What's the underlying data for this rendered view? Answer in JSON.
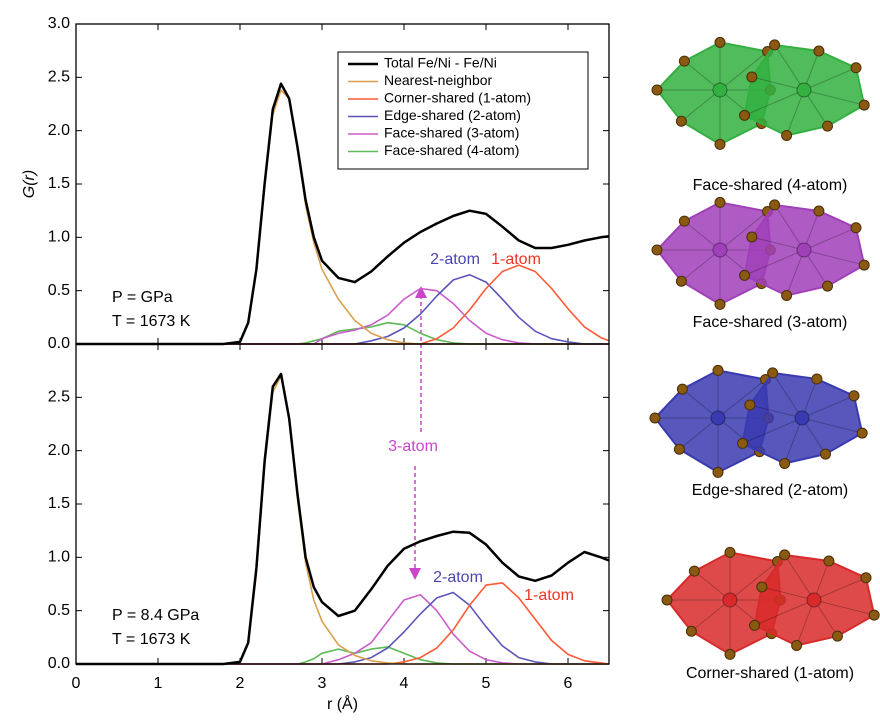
{
  "chart_data": [
    {
      "type": "line",
      "ylabel": "G(r)",
      "legend": "upper right",
      "ylim": [
        0,
        3.0
      ],
      "xlim": [
        0,
        6.5
      ],
      "yticks": [
        {
          "value": 0,
          "label": "0.0"
        },
        {
          "value": 0.5,
          "label": "0.5"
        },
        {
          "value": 1,
          "label": "1.0"
        },
        {
          "value": 1.5,
          "label": "1.5"
        },
        {
          "value": 2,
          "label": "2.0"
        },
        {
          "value": 2.5,
          "label": "2.5"
        },
        {
          "value": 3,
          "label": "3.0"
        }
      ],
      "x": [
        0,
        1,
        1.8,
        2.0,
        2.1,
        2.2,
        2.3,
        2.4,
        2.5,
        2.6,
        2.7,
        2.8,
        2.9,
        3.0,
        3.2,
        3.4,
        3.6,
        3.8,
        4.0,
        4.2,
        4.4,
        4.6,
        4.8,
        5.0,
        5.2,
        5.4,
        5.6,
        5.8,
        6.0,
        6.2,
        6.4,
        6.5
      ],
      "series": [
        {
          "name": "Total Fe/Ni - Fe/Ni",
          "color": "#000000",
          "values": [
            0,
            0,
            0,
            0.02,
            0.2,
            0.7,
            1.5,
            2.2,
            2.44,
            2.3,
            1.85,
            1.35,
            1.0,
            0.78,
            0.62,
            0.58,
            0.68,
            0.82,
            0.95,
            1.05,
            1.13,
            1.2,
            1.25,
            1.22,
            1.1,
            0.97,
            0.9,
            0.9,
            0.93,
            0.97,
            1.0,
            1.01
          ]
        },
        {
          "name": "Nearest-neighbor",
          "color": "#d9a050",
          "values": [
            0,
            0,
            0,
            0.02,
            0.2,
            0.7,
            1.5,
            2.15,
            2.38,
            2.3,
            1.85,
            1.3,
            0.95,
            0.7,
            0.42,
            0.22,
            0.1,
            0.04,
            0.01,
            0,
            0,
            0,
            0,
            0,
            0,
            0,
            0,
            0,
            0,
            0,
            0,
            0
          ]
        },
        {
          "name": "Corner-shared (1-atom)",
          "color": "#ff5a36",
          "values": [
            0,
            0,
            0,
            0,
            0,
            0,
            0,
            0,
            0,
            0,
            0,
            0,
            0,
            0,
            0,
            0,
            0,
            0,
            0,
            0,
            0.05,
            0.15,
            0.32,
            0.52,
            0.68,
            0.74,
            0.68,
            0.52,
            0.33,
            0.16,
            0.06,
            0.03
          ]
        },
        {
          "name": "Edge-shared (2-atom)",
          "color": "#5a55b8",
          "values": [
            0,
            0,
            0,
            0,
            0,
            0,
            0,
            0,
            0,
            0,
            0,
            0,
            0,
            0,
            0,
            0,
            0.03,
            0.07,
            0.15,
            0.28,
            0.45,
            0.6,
            0.65,
            0.58,
            0.42,
            0.25,
            0.12,
            0.05,
            0.02,
            0,
            0,
            0
          ]
        },
        {
          "name": "Face-shared (3-atom)",
          "color": "#cc5ccc",
          "values": [
            0,
            0,
            0,
            0,
            0,
            0,
            0,
            0,
            0,
            0,
            0,
            0,
            0,
            0.05,
            0.1,
            0.13,
            0.18,
            0.27,
            0.42,
            0.52,
            0.5,
            0.38,
            0.22,
            0.1,
            0.04,
            0.01,
            0,
            0,
            0,
            0,
            0,
            0
          ]
        },
        {
          "name": "Face-shared (4-atom)",
          "color": "#5cbb55",
          "values": [
            0,
            0,
            0,
            0,
            0,
            0,
            0,
            0,
            0,
            0,
            0,
            0.01,
            0.03,
            0.05,
            0.12,
            0.14,
            0.16,
            0.2,
            0.18,
            0.1,
            0.04,
            0.01,
            0,
            0,
            0,
            0,
            0,
            0,
            0,
            0,
            0,
            0
          ]
        }
      ],
      "annotations": [
        {
          "text": "P = GPa",
          "color": "#000000"
        },
        {
          "text": "T = 1673 K",
          "color": "#000000"
        },
        {
          "text": "2-atom",
          "color": "#4a46b0"
        },
        {
          "text": "1-atom",
          "color": "#ee3322"
        }
      ]
    },
    {
      "type": "line",
      "xlabel": "r (Å)",
      "ylim": [
        0,
        3.0
      ],
      "xlim": [
        0,
        6.5
      ],
      "yticks": [
        {
          "value": 0,
          "label": "0.0"
        },
        {
          "value": 0.5,
          "label": "0.5"
        },
        {
          "value": 1,
          "label": "1.0"
        },
        {
          "value": 1.5,
          "label": "1.5"
        },
        {
          "value": 2,
          "label": "2.0"
        },
        {
          "value": 2.5,
          "label": "2.5"
        }
      ],
      "xticks": [
        0,
        1,
        2,
        3,
        4,
        5,
        6
      ],
      "x": [
        0,
        1,
        1.8,
        2.0,
        2.1,
        2.2,
        2.3,
        2.4,
        2.5,
        2.6,
        2.7,
        2.8,
        2.9,
        3.0,
        3.2,
        3.4,
        3.6,
        3.8,
        4.0,
        4.2,
        4.4,
        4.6,
        4.8,
        5.0,
        5.2,
        5.4,
        5.6,
        5.8,
        6.0,
        6.2,
        6.4,
        6.5
      ],
      "series": [
        {
          "color": "#000000",
          "values": [
            0,
            0,
            0,
            0.02,
            0.2,
            0.9,
            1.9,
            2.6,
            2.72,
            2.3,
            1.6,
            1.0,
            0.72,
            0.58,
            0.45,
            0.5,
            0.7,
            0.92,
            1.08,
            1.15,
            1.2,
            1.24,
            1.23,
            1.12,
            0.95,
            0.82,
            0.78,
            0.83,
            0.95,
            1.05,
            1.0,
            0.97
          ]
        },
        {
          "color": "#d9a050",
          "values": [
            0,
            0,
            0,
            0.02,
            0.2,
            0.85,
            1.85,
            2.55,
            2.7,
            2.3,
            1.55,
            0.95,
            0.6,
            0.4,
            0.18,
            0.08,
            0.03,
            0.01,
            0,
            0,
            0,
            0,
            0,
            0,
            0,
            0,
            0,
            0,
            0,
            0,
            0,
            0
          ]
        },
        {
          "color": "#ff5a36",
          "values": [
            0,
            0,
            0,
            0,
            0,
            0,
            0,
            0,
            0,
            0,
            0,
            0,
            0,
            0,
            0,
            0,
            0,
            0,
            0.02,
            0.06,
            0.15,
            0.32,
            0.55,
            0.74,
            0.76,
            0.62,
            0.42,
            0.22,
            0.09,
            0.03,
            0.01,
            0
          ]
        },
        {
          "color": "#5a55b8",
          "values": [
            0,
            0,
            0,
            0,
            0,
            0,
            0,
            0,
            0,
            0,
            0,
            0,
            0,
            0,
            0,
            0.02,
            0.06,
            0.15,
            0.3,
            0.47,
            0.62,
            0.67,
            0.55,
            0.35,
            0.17,
            0.06,
            0.02,
            0,
            0,
            0,
            0,
            0
          ]
        },
        {
          "color": "#cc5ccc",
          "values": [
            0,
            0,
            0,
            0,
            0,
            0,
            0,
            0,
            0,
            0,
            0,
            0,
            0,
            0,
            0.04,
            0.1,
            0.2,
            0.4,
            0.6,
            0.65,
            0.5,
            0.28,
            0.12,
            0.04,
            0.01,
            0,
            0,
            0,
            0,
            0,
            0,
            0
          ]
        },
        {
          "color": "#5cbb55",
          "values": [
            0,
            0,
            0,
            0,
            0,
            0,
            0,
            0,
            0,
            0,
            0,
            0.02,
            0.05,
            0.1,
            0.14,
            0.1,
            0.14,
            0.16,
            0.1,
            0.04,
            0.01,
            0,
            0,
            0,
            0,
            0,
            0,
            0,
            0,
            0,
            0,
            0
          ]
        }
      ],
      "annotations": [
        {
          "text": "3-atom",
          "color": "#cc44cc"
        },
        {
          "text": "2-atom",
          "color": "#4a46b0"
        },
        {
          "text": "1-atom",
          "color": "#ee3322"
        },
        {
          "text": "P = 8.4 GPa",
          "color": "#000000"
        },
        {
          "text": "T = 1673 K",
          "color": "#000000"
        }
      ]
    }
  ],
  "images": [
    {
      "caption": "Face-shared (4-atom)",
      "color": "#33b040"
    },
    {
      "caption": "Face-shared (3-atom)",
      "color": "#a040b8"
    },
    {
      "caption": "Edge-shared (2-atom)",
      "color": "#3a3ab0"
    },
    {
      "caption": "Corner-shared (1-atom)",
      "color": "#d82a2a"
    }
  ]
}
